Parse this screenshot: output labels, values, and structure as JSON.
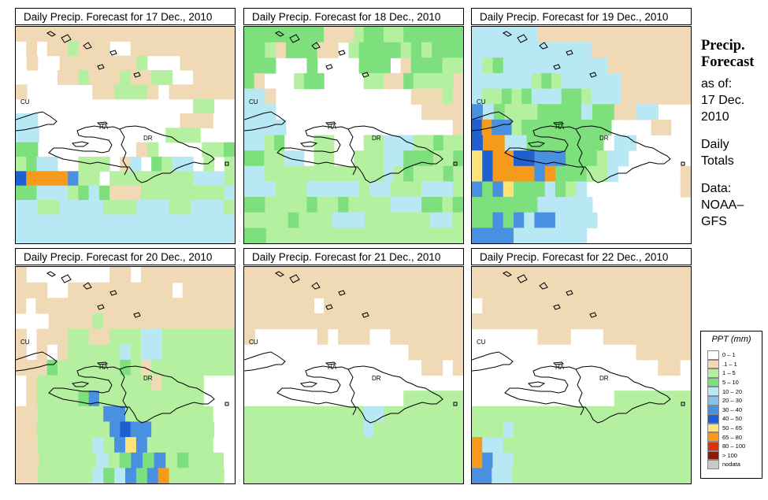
{
  "panels": [
    {
      "title": "Daily Precip. Forecast for  17 Dec., 2010"
    },
    {
      "title": "Daily Precip. Forecast for  18 Dec., 2010"
    },
    {
      "title": "Daily Precip. Forecast for  19 Dec., 2010"
    },
    {
      "title": "Daily Precip. Forecast for  20 Dec., 2010"
    },
    {
      "title": "Daily Precip. Forecast for  21 Dec., 2010"
    },
    {
      "title": "Daily Precip. Forecast for  22 Dec., 2010"
    }
  ],
  "map_labels": {
    "cuba": "CU",
    "haiti": "HA",
    "dominican_republic": "DR"
  },
  "sidebar": {
    "title_line1": "Precip.",
    "title_line2": "Forecast",
    "asof_label": "as of:",
    "date_line1": "17 Dec.",
    "date_line2": "2010",
    "period_line1": "Daily",
    "period_line2": "Totals",
    "data_line1": "Data:",
    "data_line2": "NOAA–",
    "data_line3": "GFS"
  },
  "legend": {
    "title": "PPT (mm)",
    "entries": [
      {
        "label": "0 – 1",
        "color": "#ffffff"
      },
      {
        "label": ".1 – 1",
        "color": "#f0d9b5"
      },
      {
        "label": "1 – 5",
        "color": "#b5f0a0"
      },
      {
        "label": "5 – 10",
        "color": "#7de07d"
      },
      {
        "label": "10 – 20",
        "color": "#b9e8f5"
      },
      {
        "label": "20 – 30",
        "color": "#86c0ec"
      },
      {
        "label": "30 – 40",
        "color": "#4a90e0"
      },
      {
        "label": "40 – 50",
        "color": "#1f5fd0"
      },
      {
        "label": "50 – 65",
        "color": "#fde37a"
      },
      {
        "label": "65 – 80",
        "color": "#f59a1a"
      },
      {
        "label": "80 – 100",
        "color": "#d8340e"
      },
      {
        "label": "> 100",
        "color": "#8b1a0a"
      },
      {
        "label": "nodata",
        "color": "#c8c8c8"
      }
    ]
  },
  "grids": [
    [
      "ccccccccccccccccccccc",
      "wcwccbcccwwcccccccccc",
      "wcwwcccccccbwwwccccc",
      "wwwwccbcccbccbbwwcccc",
      "cwwwwwwccbbbcwcccccc",
      "wwwwwwwwwwwwwwwwwbbww",
      "eewwwwwwwwwwwwwcccww",
      "eewwwwwwwwwwwbbbwww",
      "ggwwwwwwwwwcbwwwwbbg",
      "bgeewwbbbwcewgbeewbwb",
      "ijjjjfbbwbbbbbbbbeeeb",
      "ggeeebgegcccbbbbbbbbe",
      "eebbeeeebbbeeebbeeeb",
      "eeeeeeeeeeeeeeeeeeeee",
      "eeeeeeeeeeeeeeeeeeeee"
    ],
    [
      "ggggggggcccbggbbgggggg",
      "ggbcgggccwbggggbgbggg",
      "gggwwwgwwwwgggwcgggbb",
      "gcwwwbggwwwwbbccgbbbbc",
      "eecwwwwwwwwwwwwwcccbc",
      "eeewwwwwwwwwwwwwwcccc",
      "eeeewwwwwwwwwwwwwwwwc",
      "eebgwwwbbwwwbbeeebbgbb",
      "ggbbeewbbwwbbbeegggbbg",
      "eebbbbbbbbbbbbebgbbbgb",
      "eeebbbeeeeebeebbbeeeb",
      "ggbbbbgbbgbbbbeeeggbg",
      "bbbbgbbbeeebbbbbbeeb",
      "ggbbbbbbbbbbbbbbbbbb"
    ],
    [
      "eeeeeecccccccccccccc",
      "eeeeeeeeeeeecccccccccc",
      "ebgeeeeeeeeeecccccccc",
      "eeeeeebgbeeeeeeccccccc",
      "ebbgbgeeeggbeeeccccccc",
      "fegbbbggggeggcceewww",
      "ijffbgggggggggwwwwccww",
      "ijjeegggggggweewwwww",
      "hijjiifffgggbeewwwwww",
      "hijjjjfjgggbbewwwwwwc",
      "fgfhgggegbewwwwwwwwwc",
      "ggggggeeeeewwwwwwwww",
      "ggfgfeffeeeewwwwwwwww",
      "ffffeeeeeeewwwwwwwwww"
    ],
    [
      "cwwwwwwwwccwccccccccc",
      "cccwwccccccccccwccccc",
      "cwcccccccccccccccccccc",
      "wwwccccbcccccccccccc",
      "cwcccbbccbbbeebbbbbbb",
      "cwcwcbbbbbebeebbbbbbb",
      "cccgbbbbbbgbcbbbbbbbb",
      "wcbbbbbbbbbbbcbbbbwww",
      "wcbbbbgfbbbbbbbbbbwww",
      "ccbbbbbbffbbbbbbbbww",
      "ccbbbbbbbfiffbbbbbbww",
      "ccbbbbbebfhfbbbbbbww",
      "ccbbbbbebgfgfbgbbbw",
      "ccbbbbbegefgfjbbbbbw"
    ],
    [
      "ccccccccccccccccccccc",
      "cccccccccccccccccccccc",
      "cccccccwcccccccccccccc",
      "ccccccccccccccccccccc",
      "cwwwwwwcwcccwwccccccc",
      "wwwwwwwwwwwwwwwccccc",
      "wwwwwwwwwwwwwwwwwccwc",
      "wwwwwwwwwwwwwwwwwwwww",
      "wwwwwwwwwwwwwwwwbbbbbb",
      "bbbbbbbbbbbbeebbbbbbbb",
      "bbbbbbbbbbbbebbbbbbbbb",
      "bbbbbbbbbbbbbbbbbbbbb",
      "bbbbbbbbbbbbbbbbbbbbb",
      "bbbbbbbbbbbbbbbbbbbbbb"
    ],
    [
      "ccccccccccccccccccccc",
      "ccccccccccccccccccccc",
      "wcccccccccccccccccccc",
      "cccccccccccccccccccc",
      "wwwwwwcccwwwcccccccc",
      "wwwwwwwwwwwwwwwccccc",
      "wwwwwwwwwwwwwwwwwccw",
      "wwwwwwwwwwwwwwwwwwww",
      "wwwwwwwwwwwwwbbbbbbb",
      "bbbbbbbbbbbbbbbbbbbbb",
      "bbbebbbbbbbbbbbbbbbbb",
      "jeebbbbbbbbbbbbbbbbbb",
      "jfeebbbbbbbbbbbbbbbbb",
      "ffeebbbbbbbbbbbbbbbbbb"
    ]
  ]
}
